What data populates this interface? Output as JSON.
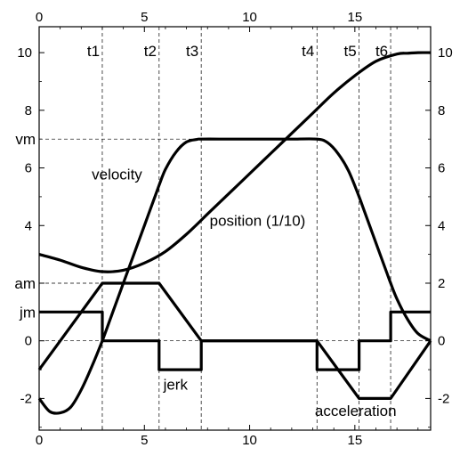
{
  "chart_data": {
    "type": "line",
    "xlim": [
      0,
      18.6
    ],
    "ylim": [
      -3.1,
      10.9
    ],
    "x_ticks": [
      0,
      5,
      10,
      15
    ],
    "y_ticks": [
      -2,
      0,
      2,
      4,
      6,
      8,
      10
    ],
    "x_tick_labels": [
      "0",
      "5",
      "10",
      "15"
    ],
    "y_tick_labels": [
      "-2",
      "0",
      "2",
      "4",
      "6",
      "8",
      "10"
    ],
    "grid": false,
    "time_markers": [
      {
        "label": "t1",
        "x": 3.0
      },
      {
        "label": "t2",
        "x": 5.7
      },
      {
        "label": "t3",
        "x": 7.7
      },
      {
        "label": "t4",
        "x": 13.2
      },
      {
        "label": "t5",
        "x": 15.2
      },
      {
        "label": "t6",
        "x": 16.7
      }
    ],
    "level_markers": [
      {
        "label": "vm",
        "y": 7.0
      },
      {
        "label": "am",
        "y": 2.0
      },
      {
        "label": "jm",
        "y": 1.0
      }
    ],
    "annotations": [
      {
        "text": "velocity",
        "x": 2.5,
        "y": 5.6
      },
      {
        "text": "position (1/10)",
        "x": 8.1,
        "y": 4.0
      },
      {
        "text": "jerk",
        "x": 5.9,
        "y": -1.7
      },
      {
        "text": "acceleration",
        "x": 13.1,
        "y": -2.6
      }
    ],
    "series": [
      {
        "name": "jerk",
        "x": [
          0,
          3.0,
          3.0,
          5.7,
          5.7,
          7.7,
          7.7,
          13.2,
          13.2,
          15.2,
          15.2,
          16.7,
          16.7,
          18.6
        ],
        "y": [
          1,
          1,
          0,
          0,
          -1,
          -1,
          0,
          0,
          -1,
          -1,
          0,
          0,
          1,
          1
        ]
      },
      {
        "name": "acceleration",
        "x": [
          0,
          3.0,
          5.7,
          7.7,
          13.2,
          15.2,
          16.7,
          18.6
        ],
        "y": [
          -1,
          2,
          2,
          0,
          0,
          -2,
          -2,
          0
        ]
      },
      {
        "name": "velocity",
        "x": [
          0,
          0.5,
          1.0,
          1.5,
          2.0,
          2.5,
          3.0,
          3.5,
          4.0,
          4.5,
          5.0,
          5.5,
          5.7,
          6.0,
          6.5,
          7.0,
          7.5,
          7.7,
          9,
          10,
          11,
          12,
          13.2,
          13.7,
          14.2,
          14.7,
          15.2,
          15.5,
          16.0,
          16.5,
          16.7,
          17.0,
          17.5,
          18.0,
          18.6
        ],
        "y": [
          -2,
          -2.45,
          -2.5,
          -2.3,
          -1.7,
          -0.9,
          0.0,
          1.0,
          2.0,
          3.0,
          4.0,
          5.0,
          5.4,
          5.95,
          6.55,
          6.9,
          6.99,
          7.0,
          7.0,
          7.0,
          7.0,
          7.0,
          7.0,
          6.88,
          6.5,
          5.9,
          5.0,
          4.4,
          3.4,
          2.4,
          2.0,
          1.45,
          0.75,
          0.25,
          0.0
        ]
      },
      {
        "name": "position (1/10)",
        "x": [
          0,
          1,
          2,
          3,
          4,
          5,
          6,
          7,
          8,
          9,
          10,
          11,
          12,
          13,
          14,
          15,
          16,
          17,
          17.5,
          18,
          18.6
        ],
        "y": [
          3.0,
          2.8,
          2.55,
          2.4,
          2.45,
          2.7,
          3.1,
          3.7,
          4.4,
          5.1,
          5.8,
          6.5,
          7.2,
          7.9,
          8.6,
          9.2,
          9.7,
          9.95,
          9.98,
          10.0,
          10.0
        ]
      }
    ]
  }
}
